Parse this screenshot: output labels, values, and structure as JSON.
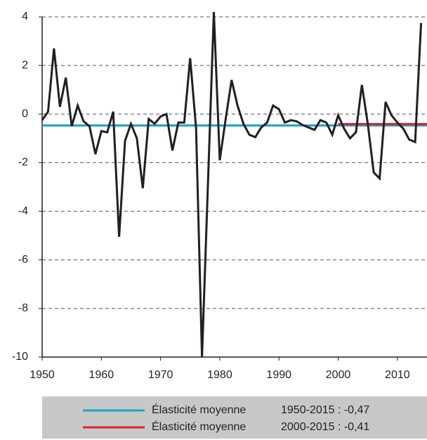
{
  "chart_data": {
    "type": "line",
    "x": [
      1950,
      1951,
      1952,
      1953,
      1954,
      1955,
      1956,
      1957,
      1958,
      1959,
      1960,
      1961,
      1962,
      1963,
      1964,
      1965,
      1966,
      1967,
      1968,
      1969,
      1970,
      1971,
      1972,
      1973,
      1974,
      1975,
      1976,
      1977,
      1978,
      1979,
      1980,
      1981,
      1982,
      1983,
      1984,
      1985,
      1986,
      1987,
      1988,
      1989,
      1990,
      1991,
      1992,
      1993,
      1994,
      1995,
      1996,
      1997,
      1998,
      1999,
      2000,
      2001,
      2002,
      2003,
      2004,
      2005,
      2006,
      2007,
      2008,
      2009,
      2010,
      2011,
      2012,
      2013,
      2014
    ],
    "series": [
      {
        "color": "#231f20",
        "values": [
          -0.25,
          0.1,
          2.7,
          0.3,
          1.5,
          -0.5,
          0.35,
          -0.3,
          -0.5,
          -1.65,
          -0.7,
          -0.75,
          0.1,
          -5.05,
          -1.1,
          -0.4,
          -1.0,
          -3.05,
          -0.2,
          -0.4,
          -0.1,
          0.0,
          -1.5,
          -0.35,
          -0.35,
          2.3,
          -0.6,
          -10,
          -2.9,
          4.2,
          -1.9,
          -0.2,
          1.4,
          0.35,
          -0.4,
          -0.85,
          -0.95,
          -0.55,
          -0.35,
          0.35,
          0.2,
          -0.35,
          -0.25,
          -0.3,
          -0.45,
          -0.55,
          -0.65,
          -0.25,
          -0.35,
          -0.85,
          -0.05,
          -0.6,
          -1.0,
          -0.75,
          1.2,
          -0.4,
          -2.4,
          -2.65,
          0.5,
          -0.05,
          -0.35,
          -0.6,
          -1.05,
          -1.15,
          3.75
        ]
      }
    ],
    "averages": [
      {
        "name": "Élasticité moyenne",
        "period": "1950-2015 : -0,47",
        "value": -0.47,
        "x": [
          1950,
          2015
        ],
        "color": "#1ea5c4"
      },
      {
        "name": "Élasticité moyenne",
        "period": "2000-2015 : -0,41",
        "value": -0.41,
        "x": [
          2000,
          2015
        ],
        "color": "#e4202e"
      }
    ],
    "xlim": [
      1950,
      2015
    ],
    "xticks": [
      1950,
      1960,
      1970,
      1980,
      1990,
      2000,
      2010
    ],
    "ylim": [
      -10,
      4
    ],
    "yticks": [
      4,
      2,
      0,
      -2,
      -4,
      -6,
      -8,
      -10
    ],
    "grid": true
  }
}
